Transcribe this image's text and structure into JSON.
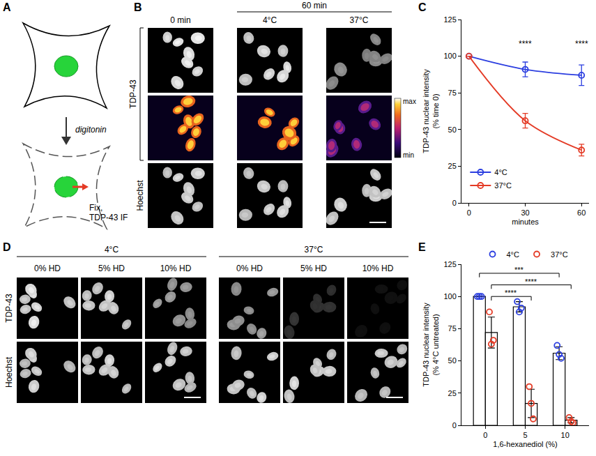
{
  "figure": {
    "panel_a": {
      "label": "A",
      "step": "digitonin",
      "readout": [
        "Fix,",
        "TDP-43 IF"
      ]
    },
    "panel_b": {
      "label": "B",
      "first_column": "0 min",
      "group": "60 min",
      "group_columns": [
        "4°C",
        "37°C"
      ],
      "rows": [
        "TDP-43",
        "Hoechst"
      ],
      "colorbar": {
        "max": "max",
        "min": "min"
      }
    },
    "panel_c": {
      "label": "C"
    },
    "panel_d": {
      "label": "D",
      "groups": [
        "4°C",
        "37°C"
      ],
      "columns": [
        "0% HD",
        "5% HD",
        "10% HD"
      ],
      "rows": [
        "TDP-43",
        "Hoechst"
      ]
    },
    "panel_e": {
      "label": "E"
    }
  },
  "chart_data": [
    {
      "type": "line",
      "x_label": "minutes",
      "y_label": [
        "TDP-43 nuclear intensity",
        "(% time 0)"
      ],
      "x": [
        0,
        30,
        60
      ],
      "series": [
        {
          "name": "4°C",
          "color": "#2b3ee0",
          "marker": "open-circle",
          "line_style": "solid",
          "values": [
            100,
            91,
            87
          ],
          "errors": [
            0,
            5,
            7
          ]
        },
        {
          "name": "37°C",
          "color": "#e43a25",
          "marker": "open-circle",
          "line_style": "solid",
          "values": [
            100,
            56,
            36
          ],
          "errors": [
            0,
            5,
            4
          ]
        }
      ],
      "xlim": [
        -4,
        64
      ],
      "xticks": [
        0,
        30,
        60
      ],
      "ylim": [
        0,
        125
      ],
      "yticks": [
        0,
        25,
        50,
        75,
        100,
        125
      ],
      "grid": false,
      "legend": "lower left",
      "annotations": [
        {
          "x": 30,
          "y": 104,
          "text": "****"
        },
        {
          "x": 60,
          "y": 104,
          "text": "****"
        }
      ]
    },
    {
      "type": "bar",
      "x_label": "1,6-hexanediol (%)",
      "y_label": [
        "TDP-43 nuclear intensity",
        "(% 4°C untreated)"
      ],
      "categories": [
        "0",
        "5",
        "10"
      ],
      "series": [
        {
          "name": "4°C",
          "color": "#2b3ee0",
          "marker": "open-circle",
          "values": [
            100,
            92,
            56
          ],
          "errors": [
            0,
            4,
            5
          ],
          "points": [
            [
              100,
              100,
              100
            ],
            [
              96,
              88,
              91
            ],
            [
              62,
              55,
              52
            ]
          ]
        },
        {
          "name": "37°C",
          "color": "#e43a25",
          "marker": "open-circle",
          "values": [
            72,
            17,
            4
          ],
          "errors": [
            12,
            11,
            2
          ],
          "points": [
            [
              88,
              63,
              66
            ],
            [
              30,
              17,
              5
            ],
            [
              6,
              3,
              2
            ]
          ]
        }
      ],
      "ylim": [
        0,
        125
      ],
      "yticks": [
        0,
        25,
        50,
        75,
        100,
        125
      ],
      "grid": false,
      "legend": "top",
      "brackets": [
        {
          "from": [
            "0",
            "4°C"
          ],
          "to": [
            "10",
            "4°C"
          ],
          "y": 118,
          "text": "***"
        },
        {
          "from": [
            "0",
            "37°C"
          ],
          "to": [
            "10",
            "37°C"
          ],
          "y": 109,
          "text": "****"
        },
        {
          "from": [
            "0",
            "37°C"
          ],
          "to": [
            "5",
            "37°C"
          ],
          "y": 100,
          "text": "****"
        }
      ]
    }
  ]
}
